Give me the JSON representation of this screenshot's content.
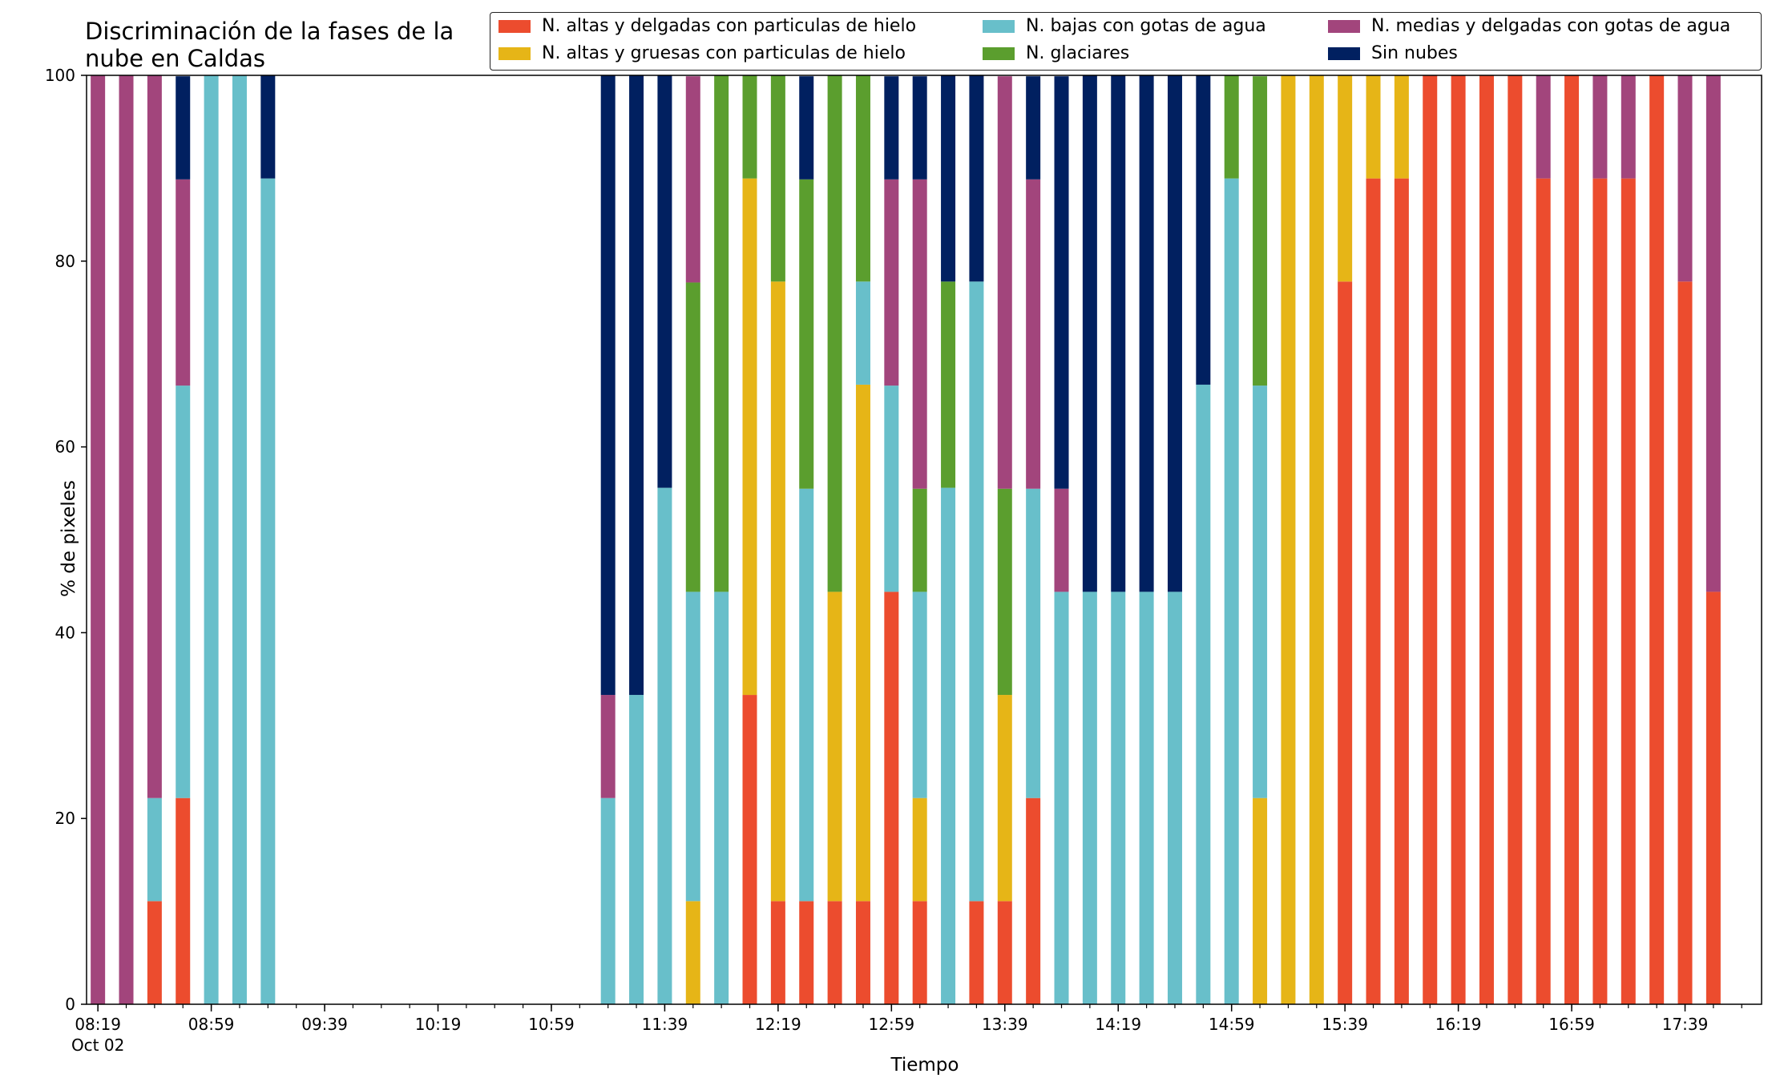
{
  "chart_data": {
    "type": "bar",
    "stacked": true,
    "title": "Discriminación de la fases de la nube en Caldas",
    "xlabel": "Tiempo",
    "ylabel": "% de pixeles",
    "ylim": [
      0,
      100
    ],
    "yticks": [
      "0",
      "20",
      "40",
      "60",
      "80",
      "100"
    ],
    "x_range_minutes": [
      495,
      1086
    ],
    "xtick_labels": [
      {
        "t": 499,
        "label": "08:19",
        "sub": "Oct 02"
      },
      {
        "t": 539,
        "label": "08:59"
      },
      {
        "t": 579,
        "label": "09:39"
      },
      {
        "t": 619,
        "label": "10:19"
      },
      {
        "t": 659,
        "label": "10:59"
      },
      {
        "t": 699,
        "label": "11:39"
      },
      {
        "t": 739,
        "label": "12:19"
      },
      {
        "t": 779,
        "label": "12:59"
      },
      {
        "t": 819,
        "label": "13:39"
      },
      {
        "t": 859,
        "label": "14:19"
      },
      {
        "t": 899,
        "label": "14:59"
      },
      {
        "t": 939,
        "label": "15:39"
      },
      {
        "t": 979,
        "label": "16:19"
      },
      {
        "t": 1019,
        "label": "16:59"
      },
      {
        "t": 1059,
        "label": "17:39"
      }
    ],
    "minor_tick_step": 10,
    "legend_position": "top-right",
    "series": [
      {
        "name": "N. altas y delgadas con particulas de hielo",
        "color": "#ec4c2e"
      },
      {
        "name": "N. altas y gruesas con particulas de hielo",
        "color": "#e6b517"
      },
      {
        "name": "N. bajas con gotas de agua",
        "color": "#68bfca"
      },
      {
        "name": "N. glaciares",
        "color": "#5b9e2e"
      },
      {
        "name": "N. medias y delgadas con gotas de agua",
        "color": "#a2457c"
      },
      {
        "name": "Sin nubes",
        "color": "#012060"
      }
    ],
    "bars": [
      {
        "t": 499,
        "values": [
          0,
          0,
          0,
          0,
          100,
          0
        ]
      },
      {
        "t": 509,
        "values": [
          0,
          0,
          0,
          0,
          100,
          0
        ]
      },
      {
        "t": 519,
        "values": [
          11.1,
          0,
          11.1,
          0,
          77.8,
          0
        ]
      },
      {
        "t": 529,
        "values": [
          22.2,
          0,
          44.4,
          0,
          22.2,
          11.1
        ]
      },
      {
        "t": 539,
        "values": [
          0,
          0,
          100,
          0,
          0,
          0
        ]
      },
      {
        "t": 549,
        "values": [
          0,
          0,
          100,
          0,
          0,
          0
        ]
      },
      {
        "t": 559,
        "values": [
          0,
          0,
          88.9,
          0,
          0,
          11.1
        ]
      },
      {
        "t": 679,
        "values": [
          0,
          0,
          22.2,
          0,
          11.1,
          66.7
        ]
      },
      {
        "t": 689,
        "values": [
          0,
          0,
          33.3,
          0,
          0,
          66.7
        ]
      },
      {
        "t": 699,
        "values": [
          0,
          0,
          55.6,
          0,
          0,
          44.4
        ]
      },
      {
        "t": 709,
        "values": [
          0,
          11.1,
          33.3,
          33.3,
          22.2,
          0
        ]
      },
      {
        "t": 719,
        "values": [
          0,
          0,
          44.4,
          55.6,
          0,
          0
        ]
      },
      {
        "t": 729,
        "values": [
          33.3,
          55.6,
          0,
          11.1,
          0,
          0
        ]
      },
      {
        "t": 739,
        "values": [
          11.1,
          66.7,
          0,
          22.2,
          0,
          0
        ]
      },
      {
        "t": 749,
        "values": [
          11.1,
          0,
          44.4,
          33.3,
          0,
          11.1
        ]
      },
      {
        "t": 759,
        "values": [
          11.1,
          33.3,
          0,
          55.6,
          0,
          0
        ]
      },
      {
        "t": 769,
        "values": [
          11.1,
          55.6,
          11.1,
          22.2,
          0,
          0
        ]
      },
      {
        "t": 779,
        "values": [
          44.4,
          0,
          22.2,
          0,
          22.2,
          11.1
        ]
      },
      {
        "t": 789,
        "values": [
          11.1,
          11.1,
          22.2,
          11.1,
          33.3,
          11.1
        ]
      },
      {
        "t": 799,
        "values": [
          0,
          0,
          55.6,
          22.2,
          0,
          22.2
        ]
      },
      {
        "t": 809,
        "values": [
          11.1,
          0,
          66.7,
          0,
          0,
          22.2
        ]
      },
      {
        "t": 819,
        "values": [
          11.1,
          22.2,
          0,
          22.2,
          44.4,
          0
        ]
      },
      {
        "t": 829,
        "values": [
          22.2,
          0,
          33.3,
          0,
          33.3,
          11.1
        ]
      },
      {
        "t": 839,
        "values": [
          0,
          0,
          44.4,
          0,
          11.1,
          44.4
        ]
      },
      {
        "t": 849,
        "values": [
          0,
          0,
          44.4,
          0,
          0,
          55.6
        ]
      },
      {
        "t": 859,
        "values": [
          0,
          0,
          44.4,
          0,
          0,
          55.6
        ]
      },
      {
        "t": 869,
        "values": [
          0,
          0,
          44.4,
          0,
          0,
          55.6
        ]
      },
      {
        "t": 879,
        "values": [
          0,
          0,
          44.4,
          0,
          0,
          55.6
        ]
      },
      {
        "t": 889,
        "values": [
          0,
          0,
          66.7,
          0,
          0,
          33.3
        ]
      },
      {
        "t": 899,
        "values": [
          0,
          0,
          88.9,
          11.1,
          0,
          0
        ]
      },
      {
        "t": 909,
        "values": [
          0,
          22.2,
          44.4,
          33.3,
          0,
          0
        ]
      },
      {
        "t": 919,
        "values": [
          0,
          100,
          0,
          0,
          0,
          0
        ]
      },
      {
        "t": 929,
        "values": [
          0,
          100,
          0,
          0,
          0,
          0
        ]
      },
      {
        "t": 939,
        "values": [
          77.8,
          22.2,
          0,
          0,
          0,
          0
        ]
      },
      {
        "t": 949,
        "values": [
          88.9,
          11.1,
          0,
          0,
          0,
          0
        ]
      },
      {
        "t": 959,
        "values": [
          88.9,
          11.1,
          0,
          0,
          0,
          0
        ]
      },
      {
        "t": 969,
        "values": [
          100,
          0,
          0,
          0,
          0,
          0
        ]
      },
      {
        "t": 979,
        "values": [
          100,
          0,
          0,
          0,
          0,
          0
        ]
      },
      {
        "t": 989,
        "values": [
          100,
          0,
          0,
          0,
          0,
          0
        ]
      },
      {
        "t": 999,
        "values": [
          100,
          0,
          0,
          0,
          0,
          0
        ]
      },
      {
        "t": 1009,
        "values": [
          88.9,
          0,
          0,
          0,
          11.1,
          0
        ]
      },
      {
        "t": 1019,
        "values": [
          100,
          0,
          0,
          0,
          0,
          0
        ]
      },
      {
        "t": 1029,
        "values": [
          88.9,
          0,
          0,
          0,
          11.1,
          0
        ]
      },
      {
        "t": 1039,
        "values": [
          88.9,
          0,
          0,
          0,
          11.1,
          0
        ]
      },
      {
        "t": 1049,
        "values": [
          100,
          0,
          0,
          0,
          0,
          0
        ]
      },
      {
        "t": 1059,
        "values": [
          77.8,
          0,
          0,
          0,
          22.2,
          0
        ]
      },
      {
        "t": 1069,
        "values": [
          44.4,
          0,
          0,
          0,
          55.6,
          0
        ]
      }
    ]
  }
}
